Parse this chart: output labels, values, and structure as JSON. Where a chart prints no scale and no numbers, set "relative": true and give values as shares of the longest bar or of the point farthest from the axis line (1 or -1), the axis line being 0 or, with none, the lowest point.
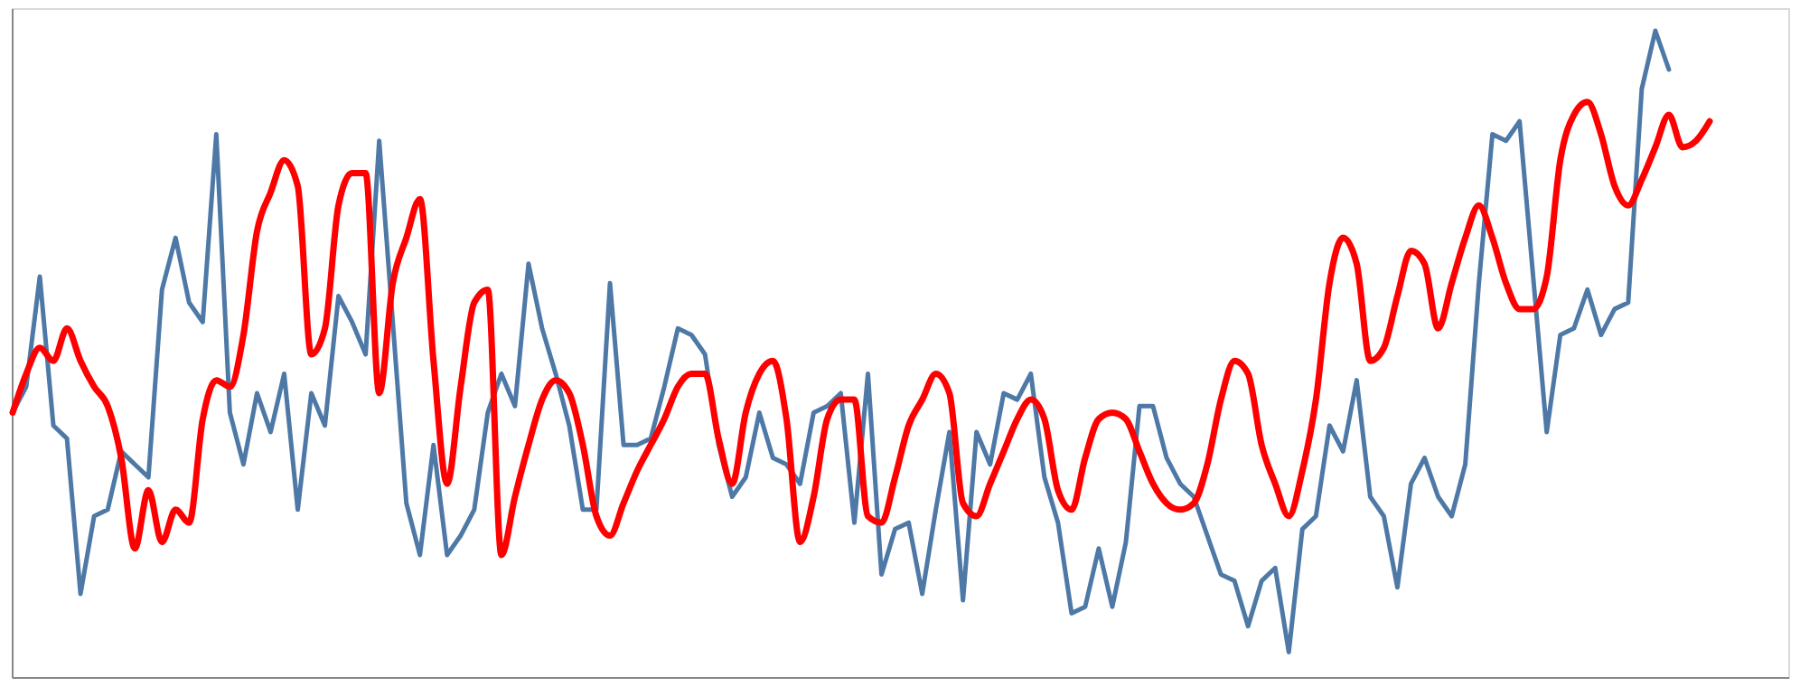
{
  "chart_data": {
    "type": "line",
    "relative": true,
    "categories": [
      null,
      null,
      null,
      null,
      null,
      null,
      null,
      null,
      null,
      null,
      null,
      null,
      null,
      null,
      null,
      null,
      null,
      null,
      null,
      null,
      null,
      null,
      null,
      null,
      null,
      null,
      null,
      null,
      null,
      null,
      null,
      null,
      null,
      null,
      null,
      null,
      null,
      null,
      null,
      null,
      null,
      null,
      null,
      null,
      null,
      null,
      null,
      null,
      null,
      null,
      null,
      null,
      null,
      null,
      null,
      null,
      null,
      null,
      null,
      null,
      null,
      null,
      null,
      null,
      null,
      null,
      null,
      null,
      null,
      null,
      null,
      null,
      null,
      null,
      null,
      null,
      null,
      null,
      null,
      null,
      null,
      null,
      null,
      null,
      null,
      null,
      null,
      null,
      null,
      null,
      null,
      null,
      null,
      null,
      null,
      null,
      null,
      null,
      null,
      null,
      null,
      null,
      null,
      null,
      null,
      null,
      null,
      null,
      null,
      null,
      null,
      null,
      null,
      null,
      null,
      null,
      null,
      null,
      null,
      null,
      null,
      null,
      null,
      null,
      null,
      null
    ],
    "series": [
      {
        "color": "#4e79a7",
        "values": [
          0.41,
          0.45,
          0.62,
          0.39,
          0.37,
          0.13,
          0.25,
          0.26,
          0.35,
          0.33,
          0.31,
          0.6,
          0.68,
          0.58,
          0.55,
          0.84,
          0.41,
          0.33,
          0.44,
          0.38,
          0.47,
          0.26,
          0.44,
          0.39,
          0.59,
          0.55,
          0.5,
          0.83,
          0.55,
          0.27,
          0.19,
          0.36,
          0.19,
          0.22,
          0.26,
          0.41,
          0.47,
          0.42,
          0.64,
          0.54,
          0.47,
          0.39,
          0.26,
          0.26,
          0.61,
          0.36,
          0.36,
          0.37,
          0.45,
          0.54,
          0.53,
          0.5,
          0.36,
          0.28,
          0.31,
          0.41,
          0.34,
          0.33,
          0.3,
          0.41,
          0.42,
          0.44,
          0.24,
          0.47,
          0.16,
          0.23,
          0.24,
          0.13,
          0.26,
          0.38,
          0.12,
          0.38,
          0.33,
          0.44,
          0.43,
          0.47,
          0.31,
          0.24,
          0.1,
          0.11,
          0.2,
          0.11,
          0.21,
          0.42,
          0.42,
          0.34,
          0.3,
          0.28,
          0.22,
          0.16,
          0.15,
          0.08,
          0.15,
          0.17,
          0.04,
          0.23,
          0.25,
          0.39,
          0.35,
          0.46,
          0.28,
          0.25,
          0.14,
          0.3,
          0.34,
          0.28,
          0.25,
          0.33,
          0.61,
          0.84,
          0.83,
          0.86,
          0.62,
          0.38,
          0.53,
          0.54,
          0.6,
          0.53,
          0.57,
          0.58,
          0.91,
          1.0,
          0.94,
          null,
          null,
          null
        ]
      },
      {
        "color": "#ff0000",
        "values": [
          0.41,
          0.47,
          0.51,
          0.49,
          0.54,
          0.49,
          0.45,
          0.42,
          0.34,
          0.2,
          0.29,
          0.21,
          0.26,
          0.24,
          0.4,
          0.46,
          0.45,
          0.53,
          0.69,
          0.75,
          0.8,
          0.76,
          0.5,
          0.54,
          0.73,
          0.78,
          0.78,
          0.44,
          0.61,
          0.68,
          0.74,
          0.49,
          0.3,
          0.45,
          0.58,
          0.6,
          0.19,
          0.28,
          0.36,
          0.43,
          0.46,
          0.44,
          0.36,
          0.25,
          0.22,
          0.27,
          0.32,
          0.36,
          0.4,
          0.45,
          0.47,
          0.47,
          0.37,
          0.3,
          0.41,
          0.47,
          0.49,
          0.4,
          0.21,
          0.28,
          0.4,
          0.43,
          0.43,
          0.25,
          0.24,
          0.31,
          0.39,
          0.43,
          0.47,
          0.44,
          0.27,
          0.25,
          0.3,
          0.35,
          0.4,
          0.43,
          0.4,
          0.29,
          0.26,
          0.34,
          0.4,
          0.41,
          0.4,
          0.35,
          0.3,
          0.27,
          0.26,
          0.27,
          0.33,
          0.43,
          0.49,
          0.47,
          0.36,
          0.3,
          0.25,
          0.32,
          0.43,
          0.61,
          0.68,
          0.64,
          0.49,
          0.51,
          0.59,
          0.66,
          0.64,
          0.54,
          0.61,
          0.68,
          0.73,
          0.68,
          0.61,
          0.57,
          0.57,
          0.62,
          0.8,
          0.87,
          0.89,
          0.84,
          0.76,
          0.73,
          0.77,
          0.82,
          0.87,
          0.82,
          0.83,
          0.86
        ]
      }
    ]
  }
}
